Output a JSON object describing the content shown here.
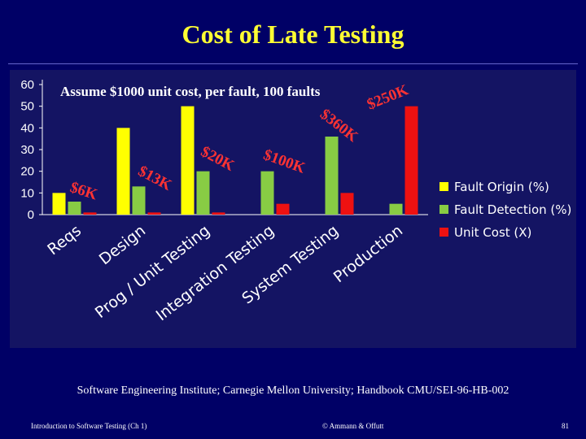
{
  "slide": {
    "title": "Cost of Late Testing",
    "source": "Software Engineering Institute; Carnegie Mellon University; Handbook CMU/SEI-96-HB-002",
    "footer_left": "Introduction to Software Testing (Ch 1)",
    "footer_center": "© Ammann & Offutt",
    "footer_right": "81"
  },
  "chart_data": {
    "type": "bar",
    "title": "Assume $1000 unit cost, per fault, 100 faults",
    "categories": [
      "Reqs",
      "Design",
      "Prog / Unit Testing",
      "Integration Testing",
      "System Testing",
      "Production"
    ],
    "series": [
      {
        "name": "Fault Origin (%)",
        "color": "#ffff00",
        "values": [
          10,
          40,
          50,
          0,
          0,
          0
        ]
      },
      {
        "name": "Fault Detection (%)",
        "color": "#88cc44",
        "values": [
          6,
          13,
          20,
          20,
          36,
          5
        ]
      },
      {
        "name": "Unit Cost (X)",
        "color": "#ee1111",
        "values": [
          1,
          1,
          1,
          5,
          10,
          50
        ]
      }
    ],
    "ylim": [
      0,
      60
    ],
    "yticks": [
      0,
      10,
      20,
      30,
      40,
      50,
      60
    ],
    "grid": false,
    "legend": "right",
    "annotations": [
      "$6K",
      "$13K",
      "$20K",
      "$100K",
      "$360K",
      "$250K"
    ]
  }
}
